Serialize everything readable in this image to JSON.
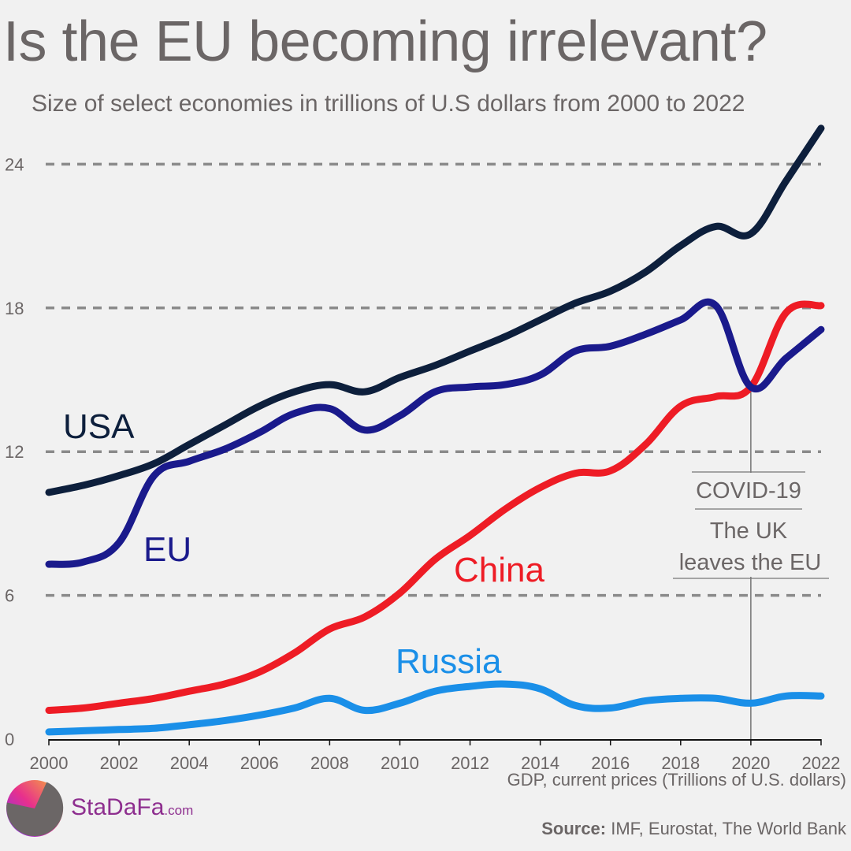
{
  "header": {
    "title": "Is the EU becoming irrelevant?",
    "subtitle": "Size of select economies in trillions of U.S dollars from 2000 to 2022"
  },
  "chart_data": {
    "type": "line",
    "title": "Is the EU becoming irrelevant?",
    "subtitle": "Size of select economies in trillions of U.S dollars from 2000 to 2022",
    "xlabel": "GDP, current prices (Trillions of U.S. dollars)",
    "ylabel": "",
    "x": [
      2000,
      2001,
      2002,
      2003,
      2004,
      2005,
      2006,
      2007,
      2008,
      2009,
      2010,
      2011,
      2012,
      2013,
      2014,
      2015,
      2016,
      2017,
      2018,
      2019,
      2020,
      2021,
      2022
    ],
    "xlim": [
      2000,
      2022
    ],
    "ylim": [
      0,
      25.5
    ],
    "x_ticks": [
      "2000",
      "2002",
      "2004",
      "2006",
      "2008",
      "2010",
      "2012",
      "2014",
      "2016",
      "2018",
      "2020",
      "2022"
    ],
    "y_ticks": [
      "0",
      "6",
      "12",
      "18",
      "24"
    ],
    "grid": "dashed horizontal at 6, 12, 18, 24",
    "series": [
      {
        "name": "USA",
        "color": "#0d1f3c",
        "values": [
          10.3,
          10.6,
          11.0,
          11.5,
          12.3,
          13.1,
          13.9,
          14.5,
          14.8,
          14.5,
          15.1,
          15.6,
          16.2,
          16.8,
          17.5,
          18.2,
          18.7,
          19.5,
          20.6,
          21.4,
          21.1,
          23.3,
          25.5
        ]
      },
      {
        "name": "EU",
        "color": "#1a1a8c",
        "values": [
          7.3,
          7.4,
          8.2,
          11.0,
          11.6,
          12.1,
          12.8,
          13.6,
          13.8,
          12.9,
          13.5,
          14.5,
          14.7,
          14.8,
          15.2,
          16.2,
          16.4,
          16.9,
          17.5,
          18.1,
          14.7,
          15.9,
          17.1
        ]
      },
      {
        "name": "China",
        "color": "#ee1c25",
        "values": [
          1.2,
          1.3,
          1.5,
          1.7,
          2.0,
          2.3,
          2.8,
          3.6,
          4.6,
          5.1,
          6.1,
          7.5,
          8.5,
          9.6,
          10.5,
          11.1,
          11.2,
          12.3,
          13.9,
          14.3,
          14.7,
          17.8,
          18.1
        ]
      },
      {
        "name": "Russia",
        "color": "#1a8fe8",
        "values": [
          0.3,
          0.35,
          0.4,
          0.45,
          0.6,
          0.77,
          1.0,
          1.3,
          1.7,
          1.2,
          1.5,
          2.0,
          2.2,
          2.3,
          2.1,
          1.4,
          1.3,
          1.6,
          1.7,
          1.7,
          1.5,
          1.8,
          1.8
        ]
      }
    ],
    "annotations": [
      {
        "x": 2020,
        "lines": [
          "COVID-19",
          "The UK",
          "leaves the EU"
        ]
      }
    ]
  },
  "footer": {
    "source_prefix": "Source:",
    "source_text": " IMF, Eurostat, The World Bank"
  },
  "logo": {
    "name": "StaDaFa",
    "suffix": ".com"
  },
  "colors": {
    "background": "#f1f1f1",
    "text": "#6b6666",
    "grid": "#8a8a8a"
  }
}
